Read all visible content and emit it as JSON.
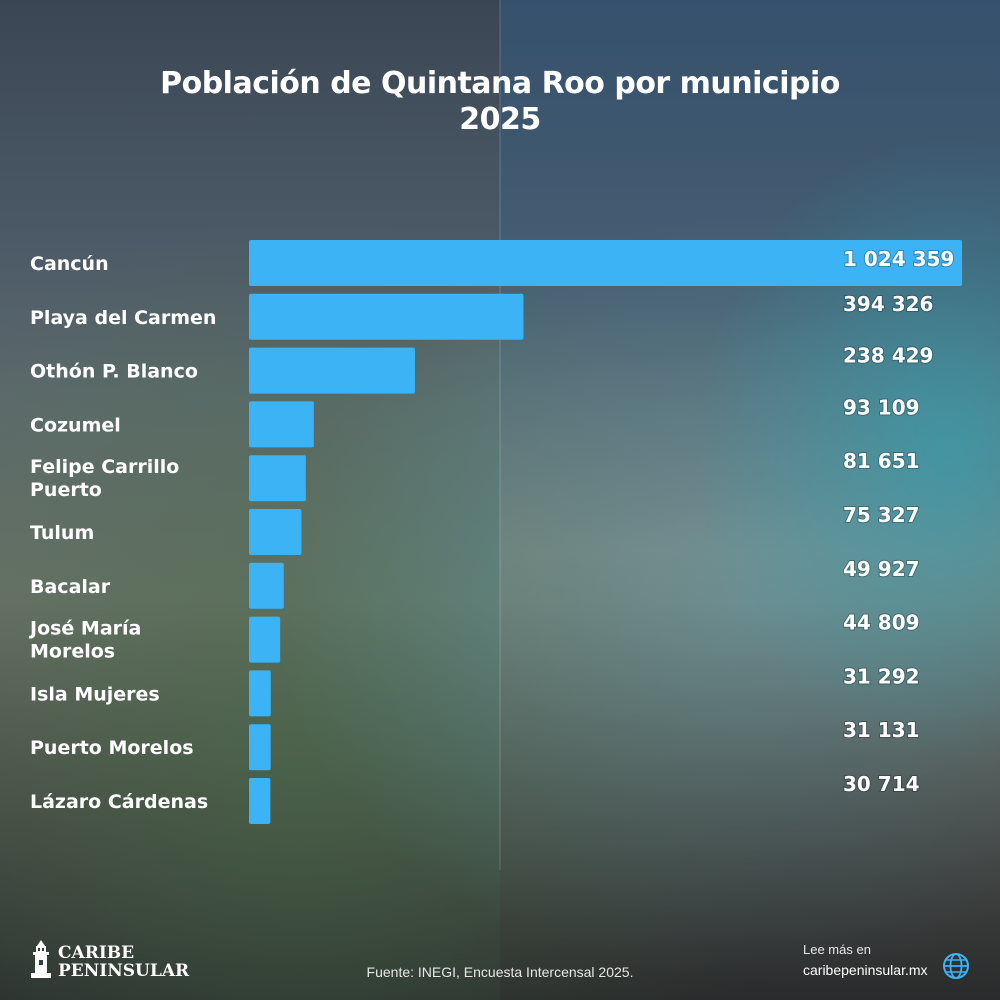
{
  "chart_data": {
    "type": "bar",
    "orientation": "horizontal",
    "title": [
      "Población de Quintana Roo por municipio",
      "2025"
    ],
    "categories": [
      [
        "Cancún"
      ],
      [
        "Playa del Carmen"
      ],
      [
        "Othón P. Blanco"
      ],
      [
        "Cozumel"
      ],
      [
        "Felipe Carrillo",
        "Puerto"
      ],
      [
        "Tulum"
      ],
      [
        "Bacalar"
      ],
      [
        "José María",
        "Morelos"
      ],
      [
        "Isla Mujeres"
      ],
      [
        "Puerto Morelos"
      ],
      [
        "Lázaro Cárdenas"
      ]
    ],
    "values": [
      1024359,
      394326,
      238429,
      93109,
      81651,
      75327,
      49927,
      44809,
      31292,
      31131,
      30714
    ],
    "value_labels": [
      "1 024 359",
      "394 326",
      "238 429",
      "93 109",
      "81 651",
      "75 327",
      "49 927",
      "44 809",
      "31 292",
      "31 131",
      "30 714"
    ],
    "bar_color": "#3bb3f5",
    "label_color": "#ffffff",
    "xlim": [
      0,
      1024359
    ],
    "grid": false,
    "legend": "none"
  },
  "footer": {
    "source": "Fuente: INEGI, Encuesta Intercensal 2025.",
    "logo_line1": "CARIBE",
    "logo_line2": "PENINSULAR",
    "logo_icon": "lighthouse-icon",
    "more_label": "Lee más en",
    "more_url": "caribepeninsular.mx",
    "globe_icon": "globe-icon"
  }
}
